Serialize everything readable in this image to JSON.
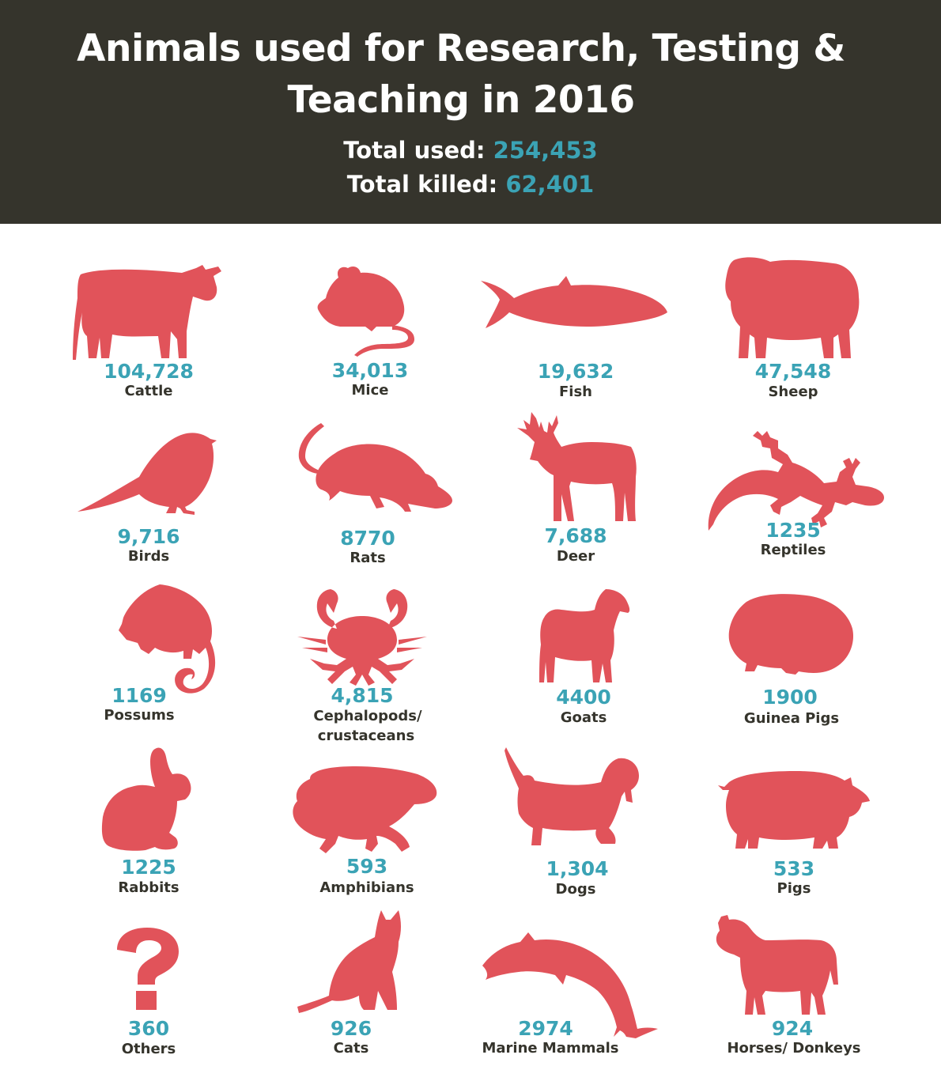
{
  "title_line1": "Animals used for Research, Testing  &",
  "title_line2": "Teaching in 2016",
  "totals": {
    "used_label": "Total used:",
    "used_value": "254,453",
    "killed_label": "Total killed:",
    "killed_value": "62,401"
  },
  "colors": {
    "header_bg": "#35342c",
    "silhouette": "#e1535a",
    "count": "#3ba3b5",
    "label": "#35342c"
  },
  "chart_data": {
    "type": "table",
    "title": "Animals used for Research, Testing  & Teaching in 2016",
    "categories": [
      "Cattle",
      "Mice",
      "Fish",
      "Sheep",
      "Birds",
      "Rats",
      "Deer",
      "Reptiles",
      "Possums",
      "Cephalopods/ crustaceans",
      "Goats",
      "Guinea Pigs",
      "Rabbits",
      "Amphibians",
      "Dogs",
      "Pigs",
      "Others",
      "Cats",
      "Marine Mammals",
      "Horses/ Donkeys"
    ],
    "values": [
      104728,
      34013,
      19632,
      47548,
      9716,
      8770,
      7688,
      1235,
      1169,
      4815,
      4400,
      1900,
      1225,
      593,
      1304,
      533,
      360,
      926,
      2974,
      924
    ]
  },
  "animals": [
    {
      "label": "Cattle",
      "count": "104,728",
      "icon": "cow-icon"
    },
    {
      "label": "Mice",
      "count": "34,013",
      "icon": "mouse-icon"
    },
    {
      "label": "Fish",
      "count": "19,632",
      "icon": "fish-icon"
    },
    {
      "label": "Sheep",
      "count": "47,548",
      "icon": "sheep-icon"
    },
    {
      "label": "Birds",
      "count": "9,716",
      "icon": "bird-icon"
    },
    {
      "label": "Rats",
      "count": "8770",
      "icon": "rat-icon"
    },
    {
      "label": "Deer",
      "count": "7,688",
      "icon": "deer-icon"
    },
    {
      "label": "Reptiles",
      "count": "1235",
      "icon": "lizard-icon"
    },
    {
      "label": "Possums",
      "count": "1169",
      "icon": "possum-icon"
    },
    {
      "label": "Cephalopods/",
      "label2": "crustaceans",
      "count": "4,815",
      "icon": "crab-icon"
    },
    {
      "label": "Goats",
      "count": "4400",
      "icon": "goat-icon"
    },
    {
      "label": "Guinea Pigs",
      "count": "1900",
      "icon": "guinea-pig-icon"
    },
    {
      "label": "Rabbits",
      "count": "1225",
      "icon": "rabbit-icon"
    },
    {
      "label": "Amphibians",
      "count": "593",
      "icon": "frog-icon"
    },
    {
      "label": "Dogs",
      "count": "1,304",
      "icon": "dog-icon"
    },
    {
      "label": "Pigs",
      "count": "533",
      "icon": "pig-icon"
    },
    {
      "label": "Others",
      "count": "360",
      "icon": "question-mark-icon"
    },
    {
      "label": "Cats",
      "count": "926",
      "icon": "cat-icon"
    },
    {
      "label": "Marine Mammals",
      "count": "2974",
      "icon": "dolphin-icon"
    },
    {
      "label": "Horses/ Donkeys",
      "count": "924",
      "icon": "horse-icon"
    }
  ]
}
